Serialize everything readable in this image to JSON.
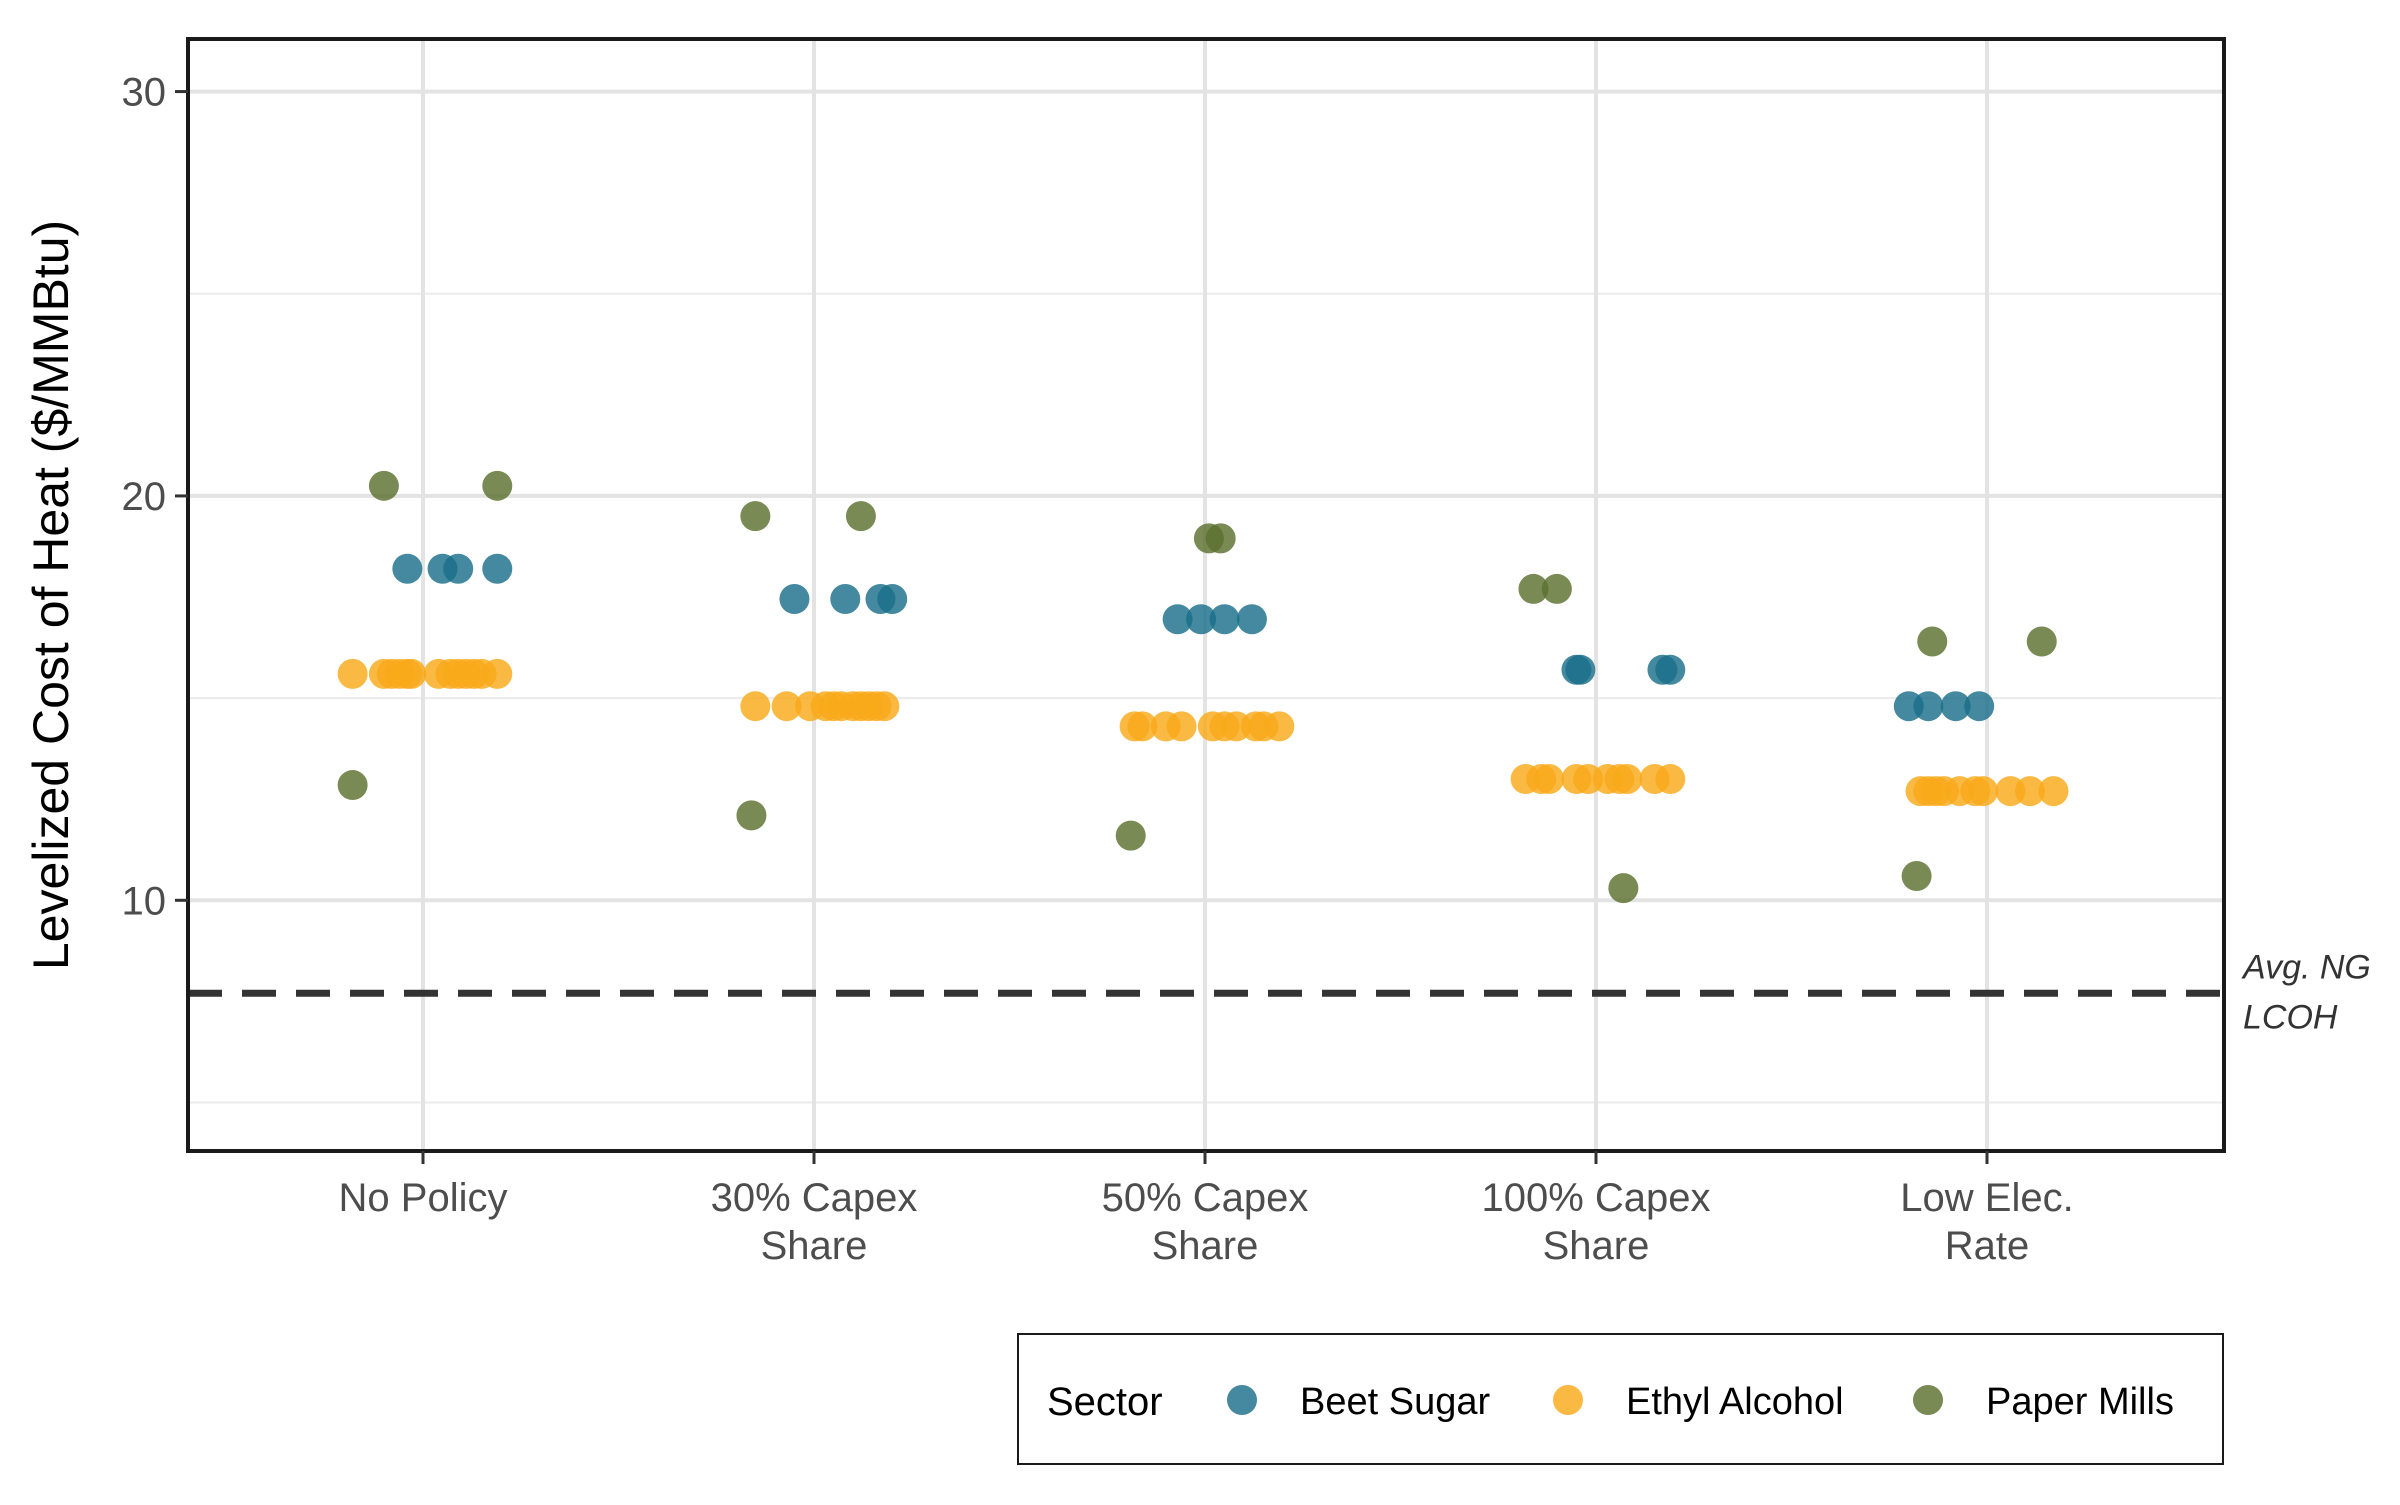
{
  "chart_data": {
    "type": "scatter",
    "ylabel": "Levelized Cost of Heat ($/MMBtu)",
    "xlabel": "",
    "ylim": [
      3.8,
      31.3
    ],
    "y_ticks": [
      10,
      20,
      30
    ],
    "y_minor_ticks": [
      5,
      15,
      25
    ],
    "grid": true,
    "categories": [
      [
        "No Policy"
      ],
      [
        "30% Capex",
        "Share"
      ],
      [
        "50% Capex",
        "Share"
      ],
      [
        "100% Capex",
        "Share"
      ],
      [
        "Low Elec.",
        "Rate"
      ]
    ],
    "reference_line": {
      "y": 7.7,
      "style": "dashed",
      "label": [
        "Avg. NG",
        "LCOH"
      ]
    },
    "legend": {
      "title": "Sector",
      "position": "bottom-right"
    },
    "series": [
      {
        "name": "Beet Sugar",
        "color": "#1b6f8a",
        "points": [
          {
            "cat": 0,
            "jitter": -0.04,
            "y": 18.2
          },
          {
            "cat": 0,
            "jitter": 0.05,
            "y": 18.2
          },
          {
            "cat": 0,
            "jitter": 0.09,
            "y": 18.2
          },
          {
            "cat": 0,
            "jitter": 0.19,
            "y": 18.2
          },
          {
            "cat": 1,
            "jitter": -0.05,
            "y": 17.45
          },
          {
            "cat": 1,
            "jitter": 0.08,
            "y": 17.45
          },
          {
            "cat": 1,
            "jitter": 0.17,
            "y": 17.45
          },
          {
            "cat": 1,
            "jitter": 0.2,
            "y": 17.45
          },
          {
            "cat": 2,
            "jitter": -0.07,
            "y": 16.95
          },
          {
            "cat": 2,
            "jitter": -0.01,
            "y": 16.95
          },
          {
            "cat": 2,
            "jitter": 0.05,
            "y": 16.95
          },
          {
            "cat": 2,
            "jitter": 0.12,
            "y": 16.95
          },
          {
            "cat": 3,
            "jitter": -0.05,
            "y": 15.7
          },
          {
            "cat": 3,
            "jitter": -0.04,
            "y": 15.7
          },
          {
            "cat": 3,
            "jitter": 0.17,
            "y": 15.7
          },
          {
            "cat": 3,
            "jitter": 0.19,
            "y": 15.7
          },
          {
            "cat": 4,
            "jitter": -0.2,
            "y": 14.8
          },
          {
            "cat": 4,
            "jitter": -0.15,
            "y": 14.8
          },
          {
            "cat": 4,
            "jitter": -0.08,
            "y": 14.8
          },
          {
            "cat": 4,
            "jitter": -0.02,
            "y": 14.8
          }
        ]
      },
      {
        "name": "Ethyl Alcohol",
        "color": "#f9a91a",
        "points": [
          {
            "cat": 0,
            "jitter": -0.18,
            "y": 15.6
          },
          {
            "cat": 0,
            "jitter": -0.1,
            "y": 15.6
          },
          {
            "cat": 0,
            "jitter": -0.08,
            "y": 15.6
          },
          {
            "cat": 0,
            "jitter": -0.06,
            "y": 15.6
          },
          {
            "cat": 0,
            "jitter": -0.04,
            "y": 15.6
          },
          {
            "cat": 0,
            "jitter": -0.03,
            "y": 15.6
          },
          {
            "cat": 0,
            "jitter": 0.04,
            "y": 15.6
          },
          {
            "cat": 0,
            "jitter": 0.07,
            "y": 15.6
          },
          {
            "cat": 0,
            "jitter": 0.09,
            "y": 15.6
          },
          {
            "cat": 0,
            "jitter": 0.11,
            "y": 15.6
          },
          {
            "cat": 0,
            "jitter": 0.13,
            "y": 15.6
          },
          {
            "cat": 0,
            "jitter": 0.15,
            "y": 15.6
          },
          {
            "cat": 0,
            "jitter": 0.19,
            "y": 15.6
          },
          {
            "cat": 1,
            "jitter": -0.15,
            "y": 14.8
          },
          {
            "cat": 1,
            "jitter": -0.07,
            "y": 14.8
          },
          {
            "cat": 1,
            "jitter": -0.01,
            "y": 14.8
          },
          {
            "cat": 1,
            "jitter": 0.03,
            "y": 14.8
          },
          {
            "cat": 1,
            "jitter": 0.05,
            "y": 14.8
          },
          {
            "cat": 1,
            "jitter": 0.07,
            "y": 14.8
          },
          {
            "cat": 1,
            "jitter": 0.1,
            "y": 14.8
          },
          {
            "cat": 1,
            "jitter": 0.12,
            "y": 14.8
          },
          {
            "cat": 1,
            "jitter": 0.14,
            "y": 14.8
          },
          {
            "cat": 1,
            "jitter": 0.16,
            "y": 14.8
          },
          {
            "cat": 1,
            "jitter": 0.18,
            "y": 14.8
          },
          {
            "cat": 2,
            "jitter": -0.18,
            "y": 14.3
          },
          {
            "cat": 2,
            "jitter": -0.16,
            "y": 14.3
          },
          {
            "cat": 2,
            "jitter": -0.1,
            "y": 14.3
          },
          {
            "cat": 2,
            "jitter": -0.06,
            "y": 14.3
          },
          {
            "cat": 2,
            "jitter": 0.02,
            "y": 14.3
          },
          {
            "cat": 2,
            "jitter": 0.05,
            "y": 14.3
          },
          {
            "cat": 2,
            "jitter": 0.08,
            "y": 14.3
          },
          {
            "cat": 2,
            "jitter": 0.13,
            "y": 14.3
          },
          {
            "cat": 2,
            "jitter": 0.15,
            "y": 14.3
          },
          {
            "cat": 2,
            "jitter": 0.19,
            "y": 14.3
          },
          {
            "cat": 3,
            "jitter": -0.18,
            "y": 13.0
          },
          {
            "cat": 3,
            "jitter": -0.14,
            "y": 13.0
          },
          {
            "cat": 3,
            "jitter": -0.12,
            "y": 13.0
          },
          {
            "cat": 3,
            "jitter": -0.05,
            "y": 13.0
          },
          {
            "cat": 3,
            "jitter": -0.02,
            "y": 13.0
          },
          {
            "cat": 3,
            "jitter": 0.03,
            "y": 13.0
          },
          {
            "cat": 3,
            "jitter": 0.06,
            "y": 13.0
          },
          {
            "cat": 3,
            "jitter": 0.08,
            "y": 13.0
          },
          {
            "cat": 3,
            "jitter": 0.15,
            "y": 13.0
          },
          {
            "cat": 3,
            "jitter": 0.19,
            "y": 13.0
          },
          {
            "cat": 4,
            "jitter": -0.17,
            "y": 12.7
          },
          {
            "cat": 4,
            "jitter": -0.15,
            "y": 12.7
          },
          {
            "cat": 4,
            "jitter": -0.13,
            "y": 12.7
          },
          {
            "cat": 4,
            "jitter": -0.11,
            "y": 12.7
          },
          {
            "cat": 4,
            "jitter": -0.07,
            "y": 12.7
          },
          {
            "cat": 4,
            "jitter": -0.03,
            "y": 12.7
          },
          {
            "cat": 4,
            "jitter": -0.01,
            "y": 12.7
          },
          {
            "cat": 4,
            "jitter": 0.06,
            "y": 12.7
          },
          {
            "cat": 4,
            "jitter": 0.11,
            "y": 12.7
          },
          {
            "cat": 4,
            "jitter": 0.17,
            "y": 12.7
          }
        ]
      },
      {
        "name": "Paper Mills",
        "color": "#5c7030",
        "points": [
          {
            "cat": 0,
            "jitter": -0.18,
            "y": 12.85
          },
          {
            "cat": 0,
            "jitter": -0.1,
            "y": 20.25
          },
          {
            "cat": 0,
            "jitter": 0.19,
            "y": 20.25
          },
          {
            "cat": 1,
            "jitter": -0.16,
            "y": 12.1
          },
          {
            "cat": 1,
            "jitter": -0.15,
            "y": 19.5
          },
          {
            "cat": 1,
            "jitter": 0.12,
            "y": 19.5
          },
          {
            "cat": 2,
            "jitter": -0.19,
            "y": 11.6
          },
          {
            "cat": 2,
            "jitter": 0.01,
            "y": 18.95
          },
          {
            "cat": 2,
            "jitter": 0.04,
            "y": 18.95
          },
          {
            "cat": 3,
            "jitter": -0.16,
            "y": 17.7
          },
          {
            "cat": 3,
            "jitter": -0.1,
            "y": 17.7
          },
          {
            "cat": 3,
            "jitter": 0.07,
            "y": 10.3
          },
          {
            "cat": 4,
            "jitter": -0.18,
            "y": 10.6
          },
          {
            "cat": 4,
            "jitter": -0.14,
            "y": 16.4
          },
          {
            "cat": 4,
            "jitter": 0.14,
            "y": 16.4
          }
        ]
      }
    ]
  }
}
